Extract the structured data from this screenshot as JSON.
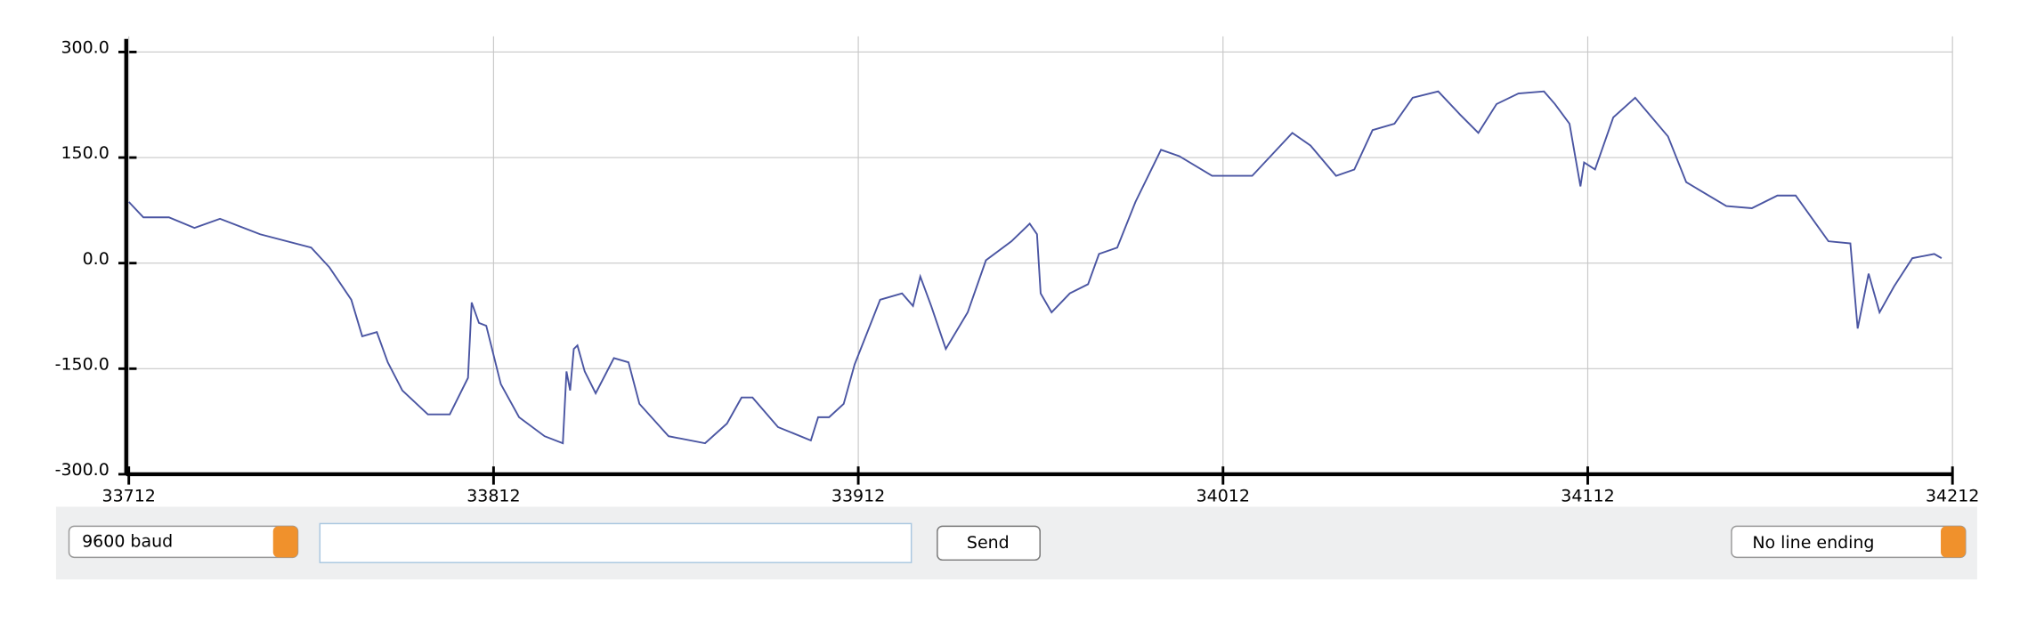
{
  "chart_data": {
    "type": "line",
    "x": [
      33712,
      33716,
      33723,
      33730,
      33737,
      33748,
      33762,
      33767,
      33773,
      33776,
      33780,
      33783,
      33787,
      33794,
      33800,
      33805,
      33806,
      33808,
      33810,
      33814,
      33819,
      33826,
      33831,
      33832,
      33833,
      33834,
      33835,
      33837,
      33840,
      33845,
      33849,
      33852,
      33860,
      33870,
      33876,
      33880,
      33883,
      33890,
      33899,
      33901,
      33904,
      33908,
      33911,
      33918,
      33924,
      33927,
      33929,
      33932,
      33936,
      33942,
      33947,
      33954,
      33959,
      33961,
      33962,
      33965,
      33970,
      33975,
      33978,
      33983,
      33988,
      33995,
      34000,
      34009,
      34020,
      34031,
      34036,
      34043,
      34048,
      34053,
      34059,
      34064,
      34071,
      34077,
      34082,
      34087,
      34093,
      34100,
      34103,
      34107,
      34110,
      34111,
      34114,
      34119,
      34125,
      34134,
      34139,
      34150,
      34157,
      34164,
      34169,
      34178,
      34184,
      34186,
      34189,
      34192,
      34196,
      34201,
      34207,
      34209
    ],
    "values": [
      87,
      65,
      65,
      50,
      63,
      41,
      22,
      -6,
      -52,
      -104,
      -98,
      -141,
      -181,
      -215,
      -215,
      -163,
      -56,
      -85,
      -89,
      -172,
      -219,
      -246,
      -256,
      -154,
      -181,
      -122,
      -117,
      -154,
      -185,
      -135,
      -141,
      -200,
      -246,
      -256,
      -228,
      -191,
      -191,
      -233,
      -252,
      -219,
      -219,
      -200,
      -144,
      -52,
      -43,
      -61,
      -19,
      -61,
      -122,
      -70,
      4,
      31,
      56,
      41,
      -43,
      -70,
      -43,
      -30,
      13,
      22,
      87,
      161,
      152,
      124,
      124,
      185,
      167,
      124,
      133,
      189,
      198,
      235,
      244,
      211,
      185,
      226,
      241,
      244,
      226,
      198,
      109,
      143,
      133,
      207,
      235,
      180,
      115,
      81,
      78,
      96,
      96,
      31,
      28,
      -93,
      -15,
      -70,
      -33,
      7,
      13,
      7
    ],
    "color": "#4a55a2",
    "xlim": [
      33712,
      34212
    ],
    "xticks": [
      33712,
      33812,
      33912,
      34012,
      34112,
      34212
    ],
    "ylim": [
      -300,
      300
    ],
    "yticks": [
      {
        "value": -300,
        "label": "-300.0"
      },
      {
        "value": -150,
        "label": "-150.0"
      },
      {
        "value": 0,
        "label": "0.0"
      },
      {
        "value": 150,
        "label": "150.0"
      },
      {
        "value": 300,
        "label": "300.0"
      }
    ],
    "grid": true
  },
  "controls": {
    "baud": "9600 baud",
    "send": "Send",
    "line_ending": "No line ending"
  }
}
